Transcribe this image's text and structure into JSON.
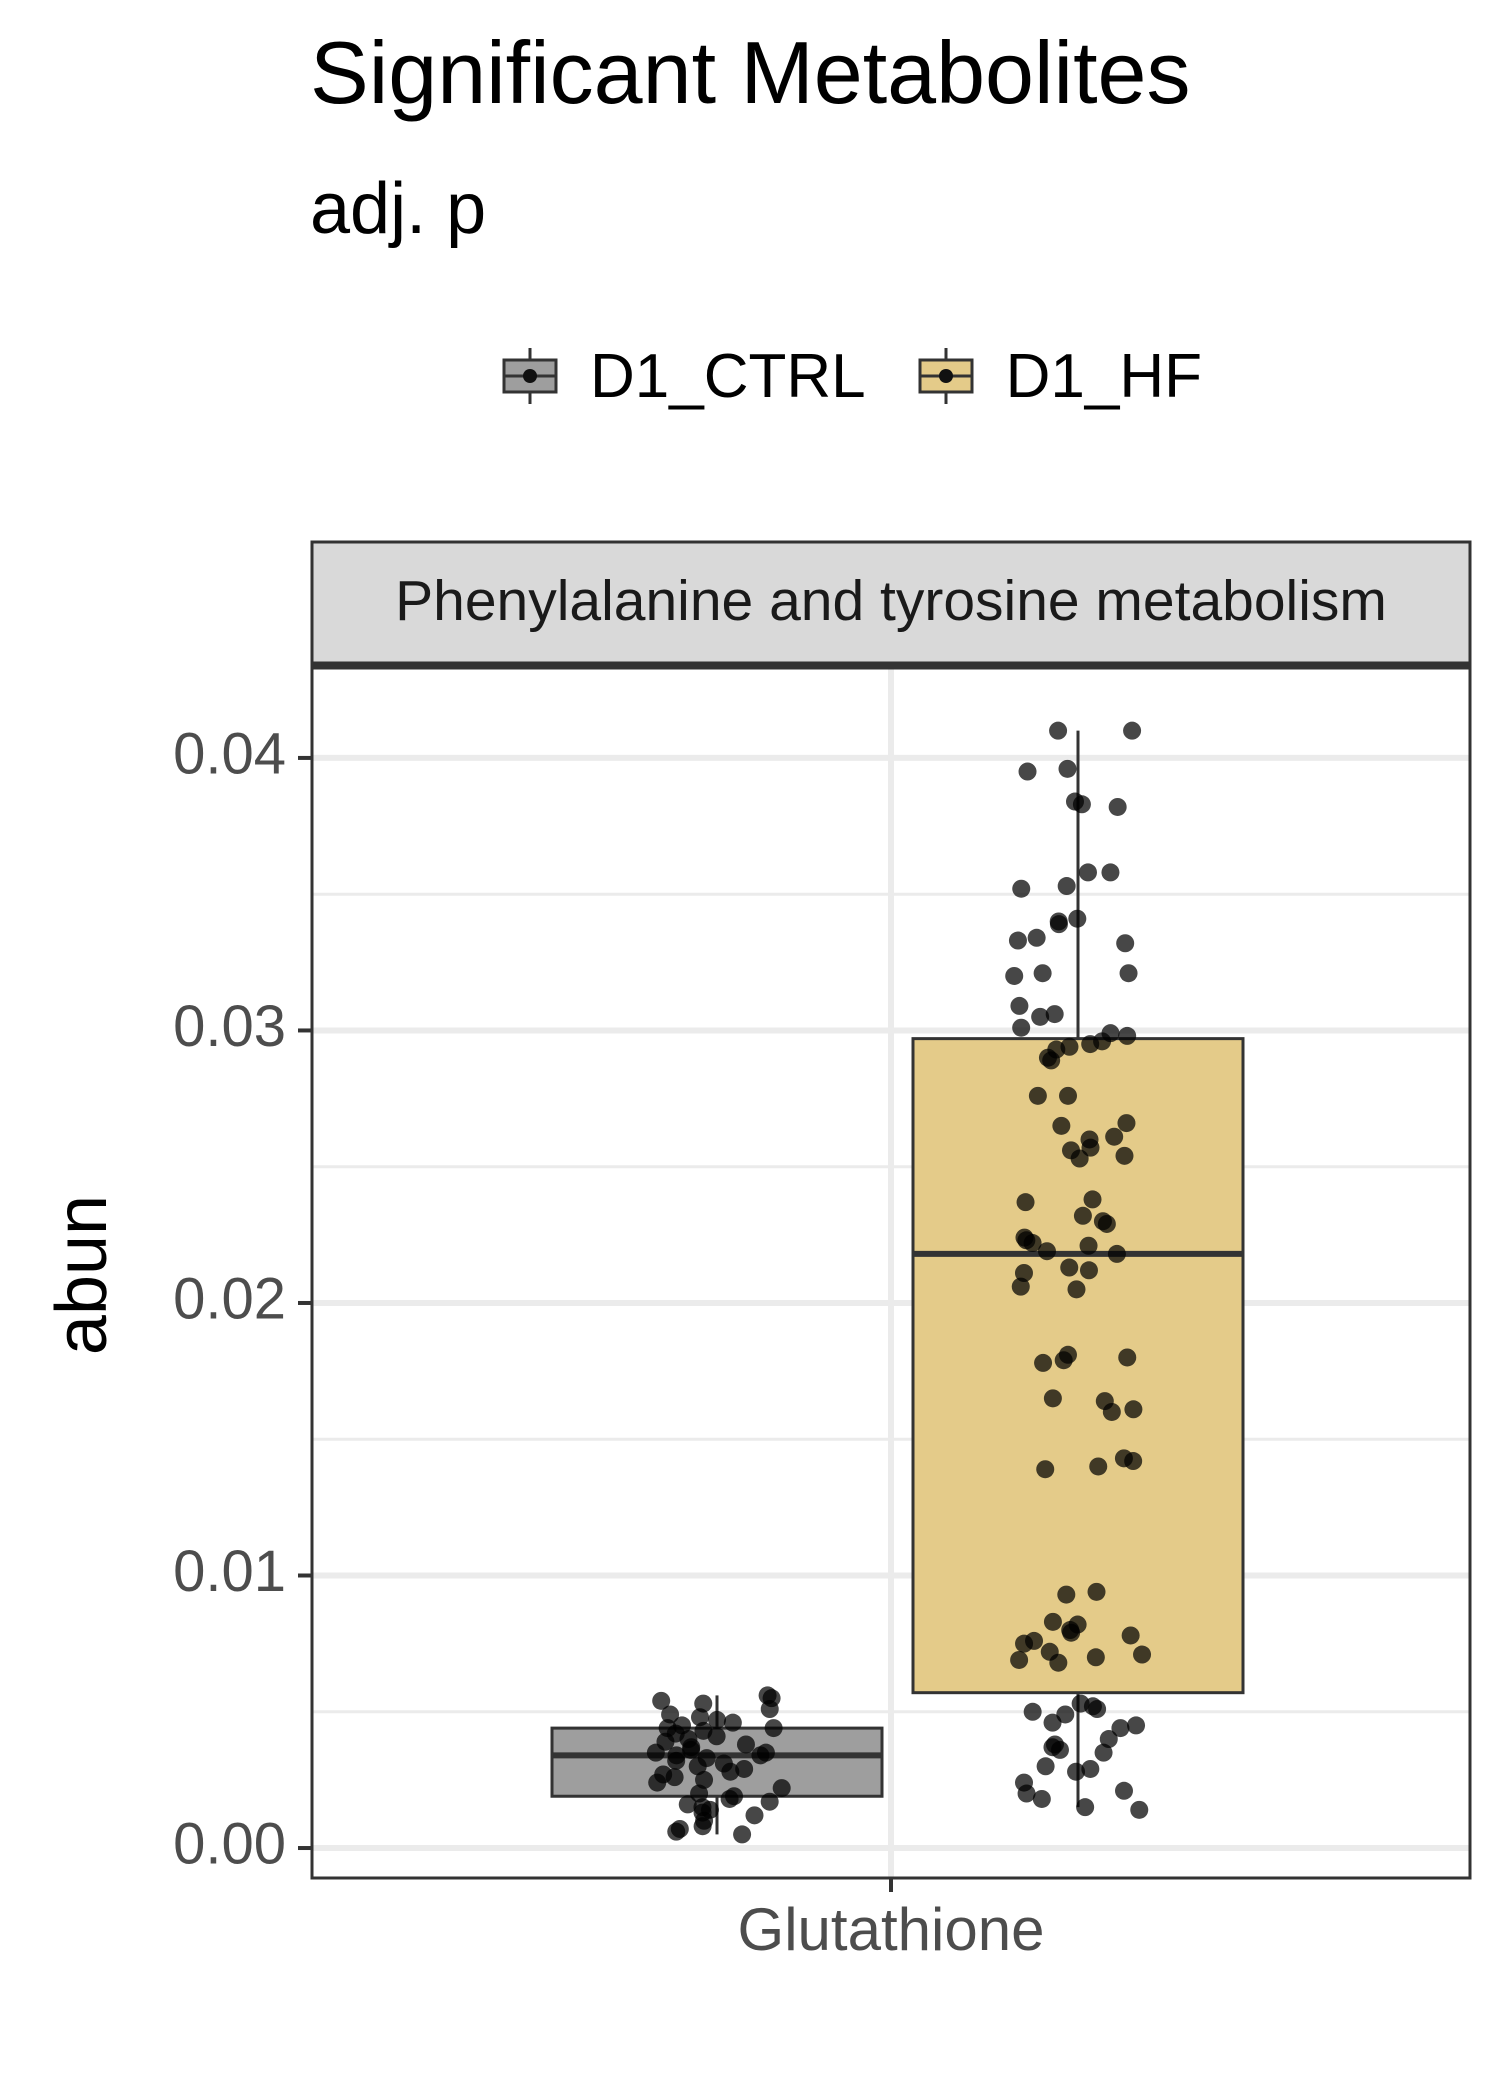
{
  "chart_data": {
    "type": "box",
    "title": "Significant Metabolites",
    "subtitle": "adj. p",
    "facet_label": "Phenylalanine and tyrosine metabolism",
    "xlabel": "",
    "ylabel": "abun",
    "categories": [
      "Glutathione"
    ],
    "ylim": [
      -0.0011,
      0.0433
    ],
    "yticks": [
      "0.00",
      "0.01",
      "0.02",
      "0.03",
      "0.04"
    ],
    "ytick_values": [
      0.0,
      0.01,
      0.02,
      0.03,
      0.04
    ],
    "grid": true,
    "legend_position": "top",
    "colors": {
      "D1_CTRL": "#9e9e9e",
      "D1_HF": "#e4cb89",
      "points": "#000000",
      "panel_border": "#333333",
      "strip_fill": "#d9d9d9",
      "grid": "#ebebeb"
    },
    "series": [
      {
        "name": "D1_CTRL",
        "box": {
          "q1": 0.0019,
          "median": 0.0034,
          "q3": 0.0044,
          "whisker_low": 0.0005,
          "whisker_high": 0.0056
        },
        "points": [
          0.0056,
          0.0055,
          0.0054,
          0.0053,
          0.0051,
          0.0049,
          0.0048,
          0.0047,
          0.0046,
          0.0045,
          0.0044,
          0.0044,
          0.0043,
          0.0042,
          0.0041,
          0.004,
          0.0039,
          0.0038,
          0.0037,
          0.0036,
          0.0035,
          0.0035,
          0.0034,
          0.0034,
          0.0033,
          0.0032,
          0.0031,
          0.003,
          0.0029,
          0.0028,
          0.0027,
          0.0026,
          0.0025,
          0.0024,
          0.0022,
          0.002,
          0.0019,
          0.0018,
          0.0017,
          0.0016,
          0.0015,
          0.0014,
          0.0013,
          0.0012,
          0.001,
          0.0008,
          0.0007,
          0.0006,
          0.0005
        ]
      },
      {
        "name": "D1_HF",
        "box": {
          "q1": 0.0057,
          "median": 0.0218,
          "q3": 0.0297,
          "whisker_low": 0.0015,
          "whisker_high": 0.041
        },
        "points": [
          0.041,
          0.041,
          0.0396,
          0.0395,
          0.0384,
          0.0383,
          0.0382,
          0.0358,
          0.0358,
          0.0353,
          0.0352,
          0.0341,
          0.034,
          0.0339,
          0.0334,
          0.0333,
          0.0332,
          0.0321,
          0.0321,
          0.032,
          0.0309,
          0.0306,
          0.0305,
          0.0301,
          0.0299,
          0.0298,
          0.0296,
          0.0295,
          0.0294,
          0.0293,
          0.029,
          0.0289,
          0.0276,
          0.0276,
          0.0266,
          0.0265,
          0.0261,
          0.026,
          0.0257,
          0.0256,
          0.0254,
          0.0253,
          0.0238,
          0.0237,
          0.0232,
          0.023,
          0.0229,
          0.0224,
          0.0223,
          0.0222,
          0.0221,
          0.0219,
          0.0218,
          0.0213,
          0.0212,
          0.0211,
          0.0206,
          0.0205,
          0.0181,
          0.018,
          0.0179,
          0.0178,
          0.0165,
          0.0164,
          0.0161,
          0.016,
          0.0143,
          0.0142,
          0.014,
          0.0139,
          0.0094,
          0.0093,
          0.0083,
          0.0082,
          0.008,
          0.0079,
          0.0078,
          0.0076,
          0.0075,
          0.0072,
          0.0071,
          0.007,
          0.0069,
          0.0068,
          0.0053,
          0.0052,
          0.0051,
          0.005,
          0.0049,
          0.0046,
          0.0045,
          0.0044,
          0.004,
          0.0038,
          0.0037,
          0.0036,
          0.0035,
          0.003,
          0.0029,
          0.0028,
          0.0024,
          0.0021,
          0.002,
          0.0018,
          0.0015,
          0.0014
        ]
      }
    ]
  }
}
